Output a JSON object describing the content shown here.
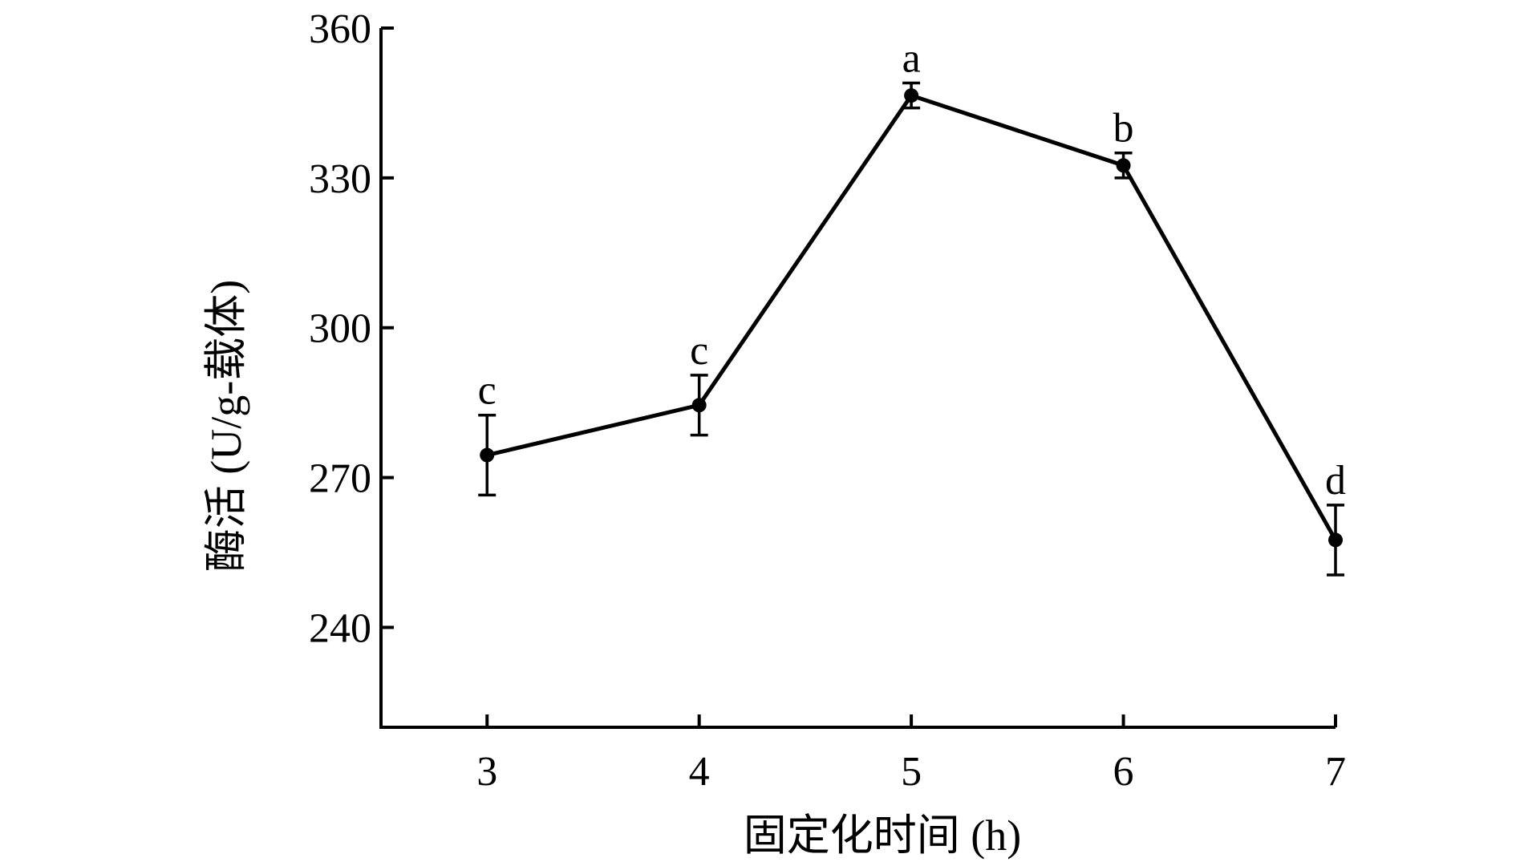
{
  "chart_data": {
    "type": "line",
    "xlabel": "固定化时间 (h)",
    "ylabel": "酶活 (U/g-载体)",
    "ylim": [
      220,
      360
    ],
    "yticks": [
      240,
      270,
      300,
      330,
      360
    ],
    "x": [
      3,
      4,
      5,
      6,
      7
    ],
    "xticks": [
      "3",
      "4",
      "5",
      "6",
      "7"
    ],
    "series": [
      {
        "values": [
          274.5,
          284.5,
          346.5,
          332.5,
          257.5
        ],
        "errors": [
          8,
          6,
          2.5,
          2.5,
          7
        ],
        "labels": [
          "c",
          "c",
          "a",
          "b",
          "d"
        ]
      }
    ],
    "grid": false,
    "legend": "none"
  }
}
